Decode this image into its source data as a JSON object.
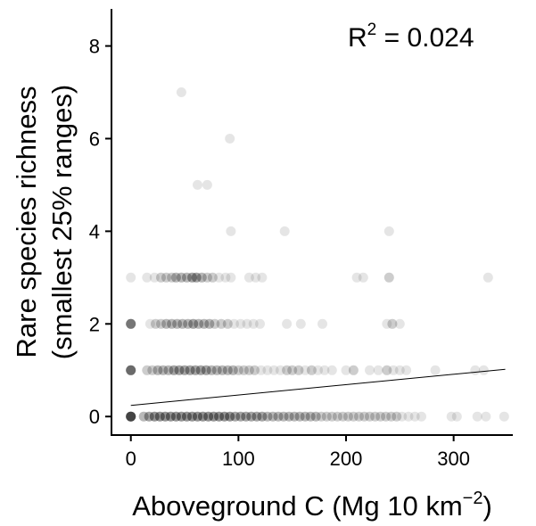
{
  "chart_data": {
    "type": "scatter",
    "xlabel": {
      "main": "Aboveground C (Mg 10 km",
      "sup": "−2",
      "close": ")"
    },
    "ylabel": {
      "line1": "Rare species richness",
      "line2": "(smallest 25% ranges)"
    },
    "annotation": {
      "base": "R",
      "sup": "2",
      "rest": " = 0.024"
    },
    "xlim": [
      -18,
      355
    ],
    "ylim": [
      -0.4,
      8.8
    ],
    "x_ticks": [
      0,
      100,
      200,
      300
    ],
    "y_ticks": [
      0,
      2,
      4,
      6,
      8
    ],
    "grid": false,
    "point_color": "#000000",
    "point_opacity": 0.1,
    "trend_line": {
      "x": [
        0,
        348
      ],
      "y": [
        0.24,
        1.02
      ]
    },
    "points": [
      {
        "x": 0,
        "y": 0,
        "n": 12
      },
      {
        "x": 0,
        "y": 1,
        "n": 8
      },
      {
        "x": 0,
        "y": 2,
        "n": 7
      },
      {
        "x": 0,
        "y": 3,
        "n": 1
      },
      {
        "x": 47,
        "y": 7,
        "n": 1
      },
      {
        "x": 92,
        "y": 6,
        "n": 1
      },
      {
        "x": 62,
        "y": 5,
        "n": 1
      },
      {
        "x": 71,
        "y": 5,
        "n": 1
      },
      {
        "x": 93,
        "y": 4,
        "n": 1
      },
      {
        "x": 143,
        "y": 4,
        "n": 1
      },
      {
        "x": 240,
        "y": 4,
        "n": 1
      },
      {
        "x": 15,
        "y": 3,
        "n": 1
      },
      {
        "x": 22,
        "y": 3,
        "n": 1
      },
      {
        "x": 28,
        "y": 3,
        "n": 2
      },
      {
        "x": 33,
        "y": 3,
        "n": 2
      },
      {
        "x": 38,
        "y": 3,
        "n": 2
      },
      {
        "x": 42,
        "y": 3,
        "n": 3
      },
      {
        "x": 47,
        "y": 3,
        "n": 3
      },
      {
        "x": 52,
        "y": 3,
        "n": 3
      },
      {
        "x": 57,
        "y": 3,
        "n": 4
      },
      {
        "x": 61,
        "y": 3,
        "n": 4
      },
      {
        "x": 66,
        "y": 3,
        "n": 3
      },
      {
        "x": 71,
        "y": 3,
        "n": 2
      },
      {
        "x": 76,
        "y": 3,
        "n": 2
      },
      {
        "x": 82,
        "y": 3,
        "n": 1
      },
      {
        "x": 88,
        "y": 3,
        "n": 1
      },
      {
        "x": 93,
        "y": 3,
        "n": 1
      },
      {
        "x": 110,
        "y": 3,
        "n": 1
      },
      {
        "x": 116,
        "y": 3,
        "n": 1
      },
      {
        "x": 122,
        "y": 3,
        "n": 1
      },
      {
        "x": 210,
        "y": 3,
        "n": 1
      },
      {
        "x": 216,
        "y": 3,
        "n": 1
      },
      {
        "x": 240,
        "y": 3,
        "n": 2
      },
      {
        "x": 332,
        "y": 3,
        "n": 1
      },
      {
        "x": 18,
        "y": 2,
        "n": 1
      },
      {
        "x": 23,
        "y": 2,
        "n": 2
      },
      {
        "x": 28,
        "y": 2,
        "n": 2
      },
      {
        "x": 33,
        "y": 2,
        "n": 3
      },
      {
        "x": 38,
        "y": 2,
        "n": 3
      },
      {
        "x": 43,
        "y": 2,
        "n": 3
      },
      {
        "x": 48,
        "y": 2,
        "n": 3
      },
      {
        "x": 53,
        "y": 2,
        "n": 3
      },
      {
        "x": 58,
        "y": 2,
        "n": 4
      },
      {
        "x": 63,
        "y": 2,
        "n": 3
      },
      {
        "x": 68,
        "y": 2,
        "n": 3
      },
      {
        "x": 73,
        "y": 2,
        "n": 3
      },
      {
        "x": 78,
        "y": 2,
        "n": 2
      },
      {
        "x": 84,
        "y": 2,
        "n": 2
      },
      {
        "x": 90,
        "y": 2,
        "n": 2
      },
      {
        "x": 96,
        "y": 2,
        "n": 1
      },
      {
        "x": 102,
        "y": 2,
        "n": 1
      },
      {
        "x": 108,
        "y": 2,
        "n": 1
      },
      {
        "x": 114,
        "y": 2,
        "n": 1
      },
      {
        "x": 120,
        "y": 2,
        "n": 1
      },
      {
        "x": 145,
        "y": 2,
        "n": 1
      },
      {
        "x": 158,
        "y": 2,
        "n": 1
      },
      {
        "x": 178,
        "y": 2,
        "n": 1
      },
      {
        "x": 238,
        "y": 2,
        "n": 1
      },
      {
        "x": 243,
        "y": 2,
        "n": 2
      },
      {
        "x": 250,
        "y": 2,
        "n": 1
      },
      {
        "x": 15,
        "y": 1,
        "n": 2
      },
      {
        "x": 20,
        "y": 1,
        "n": 2
      },
      {
        "x": 25,
        "y": 1,
        "n": 3
      },
      {
        "x": 30,
        "y": 1,
        "n": 3
      },
      {
        "x": 35,
        "y": 1,
        "n": 3
      },
      {
        "x": 40,
        "y": 1,
        "n": 4
      },
      {
        "x": 45,
        "y": 1,
        "n": 4
      },
      {
        "x": 50,
        "y": 1,
        "n": 4
      },
      {
        "x": 55,
        "y": 1,
        "n": 4
      },
      {
        "x": 60,
        "y": 1,
        "n": 4
      },
      {
        "x": 65,
        "y": 1,
        "n": 4
      },
      {
        "x": 70,
        "y": 1,
        "n": 4
      },
      {
        "x": 75,
        "y": 1,
        "n": 3
      },
      {
        "x": 80,
        "y": 1,
        "n": 3
      },
      {
        "x": 85,
        "y": 1,
        "n": 3
      },
      {
        "x": 90,
        "y": 1,
        "n": 3
      },
      {
        "x": 95,
        "y": 1,
        "n": 3
      },
      {
        "x": 100,
        "y": 1,
        "n": 2
      },
      {
        "x": 105,
        "y": 1,
        "n": 2
      },
      {
        "x": 110,
        "y": 1,
        "n": 2
      },
      {
        "x": 115,
        "y": 1,
        "n": 2
      },
      {
        "x": 121,
        "y": 1,
        "n": 1
      },
      {
        "x": 127,
        "y": 1,
        "n": 1
      },
      {
        "x": 133,
        "y": 1,
        "n": 1
      },
      {
        "x": 139,
        "y": 1,
        "n": 1
      },
      {
        "x": 145,
        "y": 1,
        "n": 2
      },
      {
        "x": 150,
        "y": 1,
        "n": 2
      },
      {
        "x": 156,
        "y": 1,
        "n": 2
      },
      {
        "x": 162,
        "y": 1,
        "n": 1
      },
      {
        "x": 168,
        "y": 1,
        "n": 2
      },
      {
        "x": 174,
        "y": 1,
        "n": 1
      },
      {
        "x": 180,
        "y": 1,
        "n": 1
      },
      {
        "x": 187,
        "y": 1,
        "n": 1
      },
      {
        "x": 200,
        "y": 1,
        "n": 1
      },
      {
        "x": 207,
        "y": 1,
        "n": 2
      },
      {
        "x": 222,
        "y": 1,
        "n": 1
      },
      {
        "x": 230,
        "y": 1,
        "n": 1
      },
      {
        "x": 238,
        "y": 1,
        "n": 2
      },
      {
        "x": 244,
        "y": 1,
        "n": 1
      },
      {
        "x": 250,
        "y": 1,
        "n": 1
      },
      {
        "x": 256,
        "y": 1,
        "n": 1
      },
      {
        "x": 283,
        "y": 1,
        "n": 1
      },
      {
        "x": 320,
        "y": 1,
        "n": 1
      },
      {
        "x": 328,
        "y": 1,
        "n": 1
      },
      {
        "x": 12,
        "y": 0,
        "n": 3
      },
      {
        "x": 17,
        "y": 0,
        "n": 4
      },
      {
        "x": 22,
        "y": 0,
        "n": 5
      },
      {
        "x": 27,
        "y": 0,
        "n": 5
      },
      {
        "x": 32,
        "y": 0,
        "n": 5
      },
      {
        "x": 37,
        "y": 0,
        "n": 5
      },
      {
        "x": 42,
        "y": 0,
        "n": 5
      },
      {
        "x": 47,
        "y": 0,
        "n": 5
      },
      {
        "x": 52,
        "y": 0,
        "n": 5
      },
      {
        "x": 57,
        "y": 0,
        "n": 5
      },
      {
        "x": 62,
        "y": 0,
        "n": 5
      },
      {
        "x": 67,
        "y": 0,
        "n": 5
      },
      {
        "x": 72,
        "y": 0,
        "n": 5
      },
      {
        "x": 77,
        "y": 0,
        "n": 5
      },
      {
        "x": 82,
        "y": 0,
        "n": 5
      },
      {
        "x": 87,
        "y": 0,
        "n": 5
      },
      {
        "x": 92,
        "y": 0,
        "n": 5
      },
      {
        "x": 97,
        "y": 0,
        "n": 4
      },
      {
        "x": 102,
        "y": 0,
        "n": 4
      },
      {
        "x": 107,
        "y": 0,
        "n": 4
      },
      {
        "x": 112,
        "y": 0,
        "n": 4
      },
      {
        "x": 117,
        "y": 0,
        "n": 4
      },
      {
        "x": 122,
        "y": 0,
        "n": 4
      },
      {
        "x": 127,
        "y": 0,
        "n": 3
      },
      {
        "x": 132,
        "y": 0,
        "n": 3
      },
      {
        "x": 137,
        "y": 0,
        "n": 3
      },
      {
        "x": 142,
        "y": 0,
        "n": 3
      },
      {
        "x": 147,
        "y": 0,
        "n": 3
      },
      {
        "x": 152,
        "y": 0,
        "n": 3
      },
      {
        "x": 157,
        "y": 0,
        "n": 3
      },
      {
        "x": 162,
        "y": 0,
        "n": 3
      },
      {
        "x": 167,
        "y": 0,
        "n": 3
      },
      {
        "x": 172,
        "y": 0,
        "n": 3
      },
      {
        "x": 177,
        "y": 0,
        "n": 2
      },
      {
        "x": 182,
        "y": 0,
        "n": 2
      },
      {
        "x": 187,
        "y": 0,
        "n": 2
      },
      {
        "x": 192,
        "y": 0,
        "n": 2
      },
      {
        "x": 197,
        "y": 0,
        "n": 2
      },
      {
        "x": 202,
        "y": 0,
        "n": 2
      },
      {
        "x": 207,
        "y": 0,
        "n": 2
      },
      {
        "x": 212,
        "y": 0,
        "n": 2
      },
      {
        "x": 217,
        "y": 0,
        "n": 2
      },
      {
        "x": 222,
        "y": 0,
        "n": 2
      },
      {
        "x": 227,
        "y": 0,
        "n": 2
      },
      {
        "x": 232,
        "y": 0,
        "n": 2
      },
      {
        "x": 237,
        "y": 0,
        "n": 2
      },
      {
        "x": 242,
        "y": 0,
        "n": 2
      },
      {
        "x": 247,
        "y": 0,
        "n": 2
      },
      {
        "x": 252,
        "y": 0,
        "n": 1
      },
      {
        "x": 258,
        "y": 0,
        "n": 1
      },
      {
        "x": 264,
        "y": 0,
        "n": 1
      },
      {
        "x": 270,
        "y": 0,
        "n": 1
      },
      {
        "x": 298,
        "y": 0,
        "n": 1
      },
      {
        "x": 303,
        "y": 0,
        "n": 1
      },
      {
        "x": 322,
        "y": 0,
        "n": 1
      },
      {
        "x": 330,
        "y": 0,
        "n": 1
      },
      {
        "x": 347,
        "y": 0,
        "n": 1
      }
    ]
  }
}
